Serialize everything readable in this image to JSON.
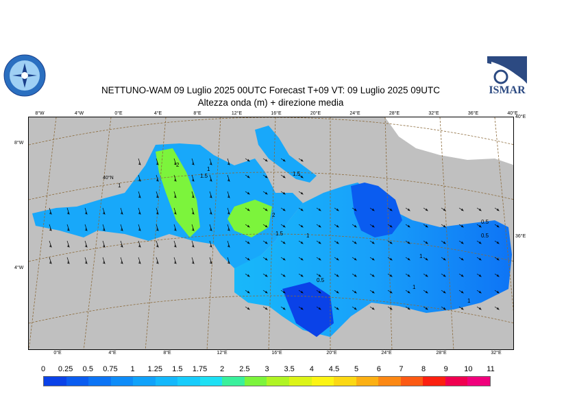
{
  "header": {
    "title_line1": "NETTUNO-WAM  09  Luglio   2025 00UTC Forecast T+09 VT: 09  Luglio   2025 09UTC",
    "title_line2": "Altezza onda (m) + direzione media"
  },
  "logos": {
    "left_name": "aeronautica-meteo-logo",
    "right_name": "ismar-logo",
    "right_text": "ISMAR"
  },
  "top_lon_ticks": [
    "8°W",
    "4°W",
    "0°E",
    "4°E",
    "8°E",
    "12°E",
    "16°E",
    "20°E",
    "24°E",
    "28°E",
    "32°E",
    "36°E",
    "40°E"
  ],
  "bottom_lon_ticks": [
    "0°E",
    "4°E",
    "8°E",
    "12°E",
    "16°E",
    "20°E",
    "24°E",
    "28°E",
    "32°E"
  ],
  "left_lat_ticks": [
    "8°W",
    "4°W"
  ],
  "right_lat_ticks": [
    "40°E",
    "36°E"
  ],
  "map_labels": [
    "40°N"
  ],
  "contour_labels": [
    "1",
    "2",
    "1.5",
    "1.5",
    "1",
    "2",
    "1",
    "1.5",
    "0.5",
    "1",
    "0.5",
    "0.5",
    "1",
    "1"
  ],
  "legend": {
    "labels": [
      "0",
      "0.25",
      "0.5",
      "0.75",
      "1",
      "1.25",
      "1.5",
      "1.75",
      "2",
      "2.5",
      "3",
      "3.5",
      "4",
      "4.5",
      "5",
      "6",
      "7",
      "8",
      "9",
      "10",
      "11"
    ],
    "colors": [
      "#0a42e8",
      "#0a5cf0",
      "#0c74f5",
      "#0e8cf8",
      "#10a2fa",
      "#14b8fc",
      "#18ccfc",
      "#1ee0f4",
      "#3af09c",
      "#7cf43c",
      "#b0f424",
      "#dcf418",
      "#fcf414",
      "#fcd814",
      "#fcb014",
      "#fc8814",
      "#fc5a14",
      "#fc2010",
      "#f00050",
      "#f0007c"
    ]
  },
  "colors": {
    "land": "#c0c0c0",
    "land_light": "#ffffff",
    "sea_low": "#0a42e8",
    "sea_mid": "#18a8fa",
    "sea_high": "#3af0c8",
    "sea_peak": "#7cf43c",
    "graticule": "#8b6a3a"
  }
}
